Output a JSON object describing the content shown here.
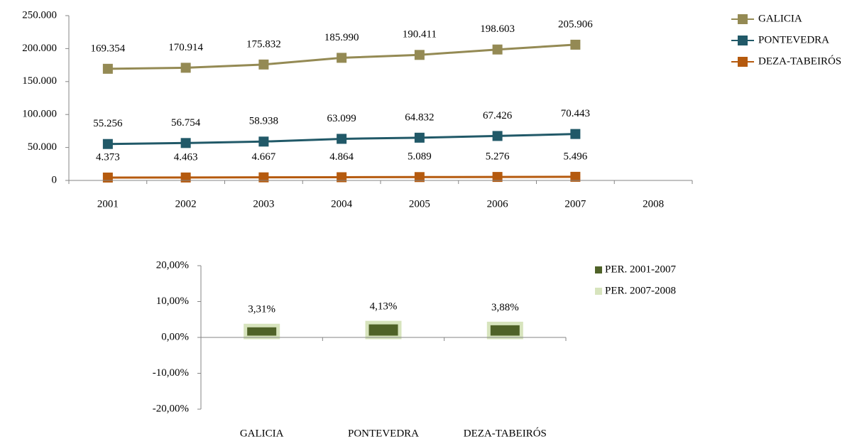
{
  "chart_data": [
    {
      "type": "line",
      "categories": [
        "2001",
        "2002",
        "2003",
        "2004",
        "2005",
        "2006",
        "2007",
        "2008"
      ],
      "series": [
        {
          "name": "GALICIA",
          "color": "#948a54",
          "values": [
            169354,
            170914,
            175832,
            185990,
            190411,
            198603,
            205906,
            null
          ],
          "value_labels": [
            "169.354",
            "170.914",
            "175.832",
            "185.990",
            "190.411",
            "198.603",
            "205.906",
            null
          ]
        },
        {
          "name": "PONTEVEDRA",
          "color": "#215968",
          "values": [
            55256,
            56754,
            58938,
            63099,
            64832,
            67426,
            70443,
            null
          ],
          "value_labels": [
            "55.256",
            "56.754",
            "58.938",
            "63.099",
            "64.832",
            "67.426",
            "70.443",
            null
          ]
        },
        {
          "name": "DEZA-TABEIRÓS",
          "color": "#b55a0e",
          "values": [
            4373,
            4463,
            4667,
            4864,
            5089,
            5276,
            5496,
            null
          ],
          "value_labels": [
            "4.373",
            "4.463",
            "4.667",
            "4.864",
            "5.089",
            "5.276",
            "5.496",
            null
          ]
        }
      ],
      "ylim": [
        0,
        250000
      ],
      "yticks": [
        0,
        {
          "value": 50000,
          "label": "50.000"
        },
        {
          "value": 100000,
          "label": "100.000"
        },
        {
          "value": 150000,
          "label": "150.000"
        },
        {
          "value": 200000,
          "label": "200.000"
        },
        {
          "value": 250000,
          "label": "250.000"
        }
      ],
      "legend": "right"
    },
    {
      "type": "bar",
      "categories": [
        "GALICIA",
        "PONTEVEDRA",
        "DEZA-TABEIRÓS"
      ],
      "series": [
        {
          "name": "PER. 2001-2007",
          "color": "#4f6228",
          "values": [
            3.31,
            4.13,
            3.88
          ],
          "value_labels": [
            "3,31%",
            "4,13%",
            "3,88%"
          ]
        },
        {
          "name": "PER. 2007-2008",
          "color": "#d7e4bd",
          "values": [
            null,
            null,
            null
          ]
        }
      ],
      "ylim": [
        -20,
        20
      ],
      "yticks": [
        {
          "value": -20,
          "label": "-20,00%"
        },
        {
          "value": -10,
          "label": "-10,00%"
        },
        {
          "value": 0,
          "label": "0,00%"
        },
        {
          "value": 10,
          "label": "10,00%"
        },
        {
          "value": 20,
          "label": "20,00%"
        }
      ],
      "legend": "right"
    }
  ]
}
